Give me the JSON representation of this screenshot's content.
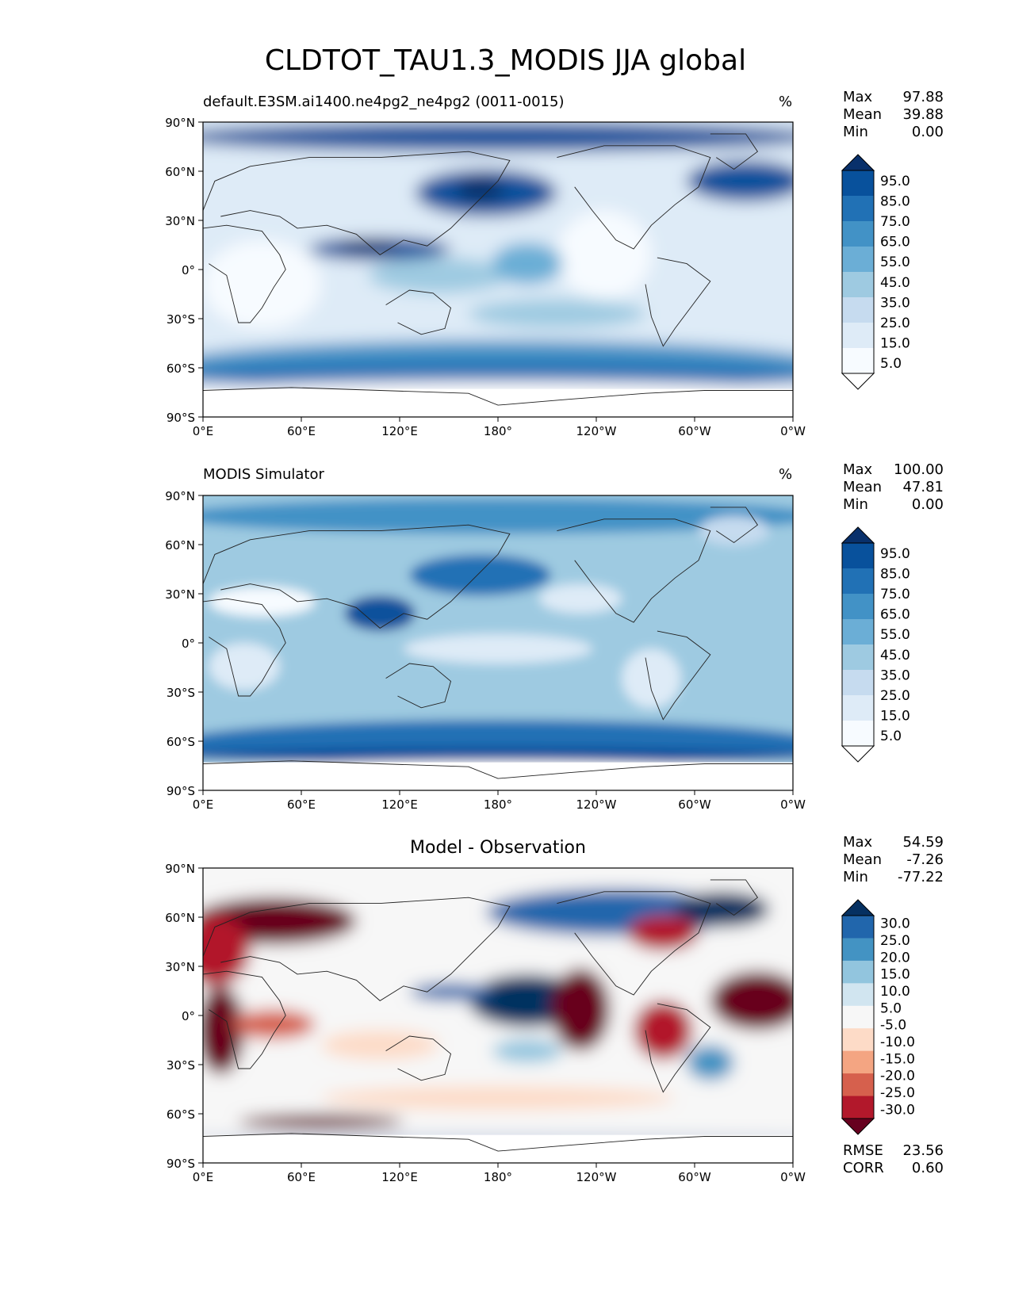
{
  "figure": {
    "title": "CLDTOT_TAU1.3_MODIS JJA global"
  },
  "axes": {
    "yticks": [
      "90°N",
      "60°N",
      "30°N",
      "0°",
      "30°S",
      "60°S",
      "90°S"
    ],
    "xticks": [
      "0°E",
      "60°E",
      "120°E",
      "180°",
      "120°W",
      "60°W",
      "0°W"
    ]
  },
  "panels": [
    {
      "title_left": "default.E3SM.ai1400.ne4pg2_ne4pg2 (0011-0015)",
      "units": "%",
      "stats": {
        "max_label": "Max",
        "max": "97.88",
        "mean_label": "Mean",
        "mean": "39.88",
        "min_label": "Min",
        "min": "0.00"
      },
      "colorbar": {
        "labels": [
          "95.0",
          "85.0",
          "75.0",
          "65.0",
          "55.0",
          "45.0",
          "35.0",
          "25.0",
          "15.0",
          "5.0"
        ],
        "colors": [
          "#08306b",
          "#08519c",
          "#2171b5",
          "#4292c6",
          "#6baed6",
          "#9ecae1",
          "#c6dbef",
          "#deebf7",
          "#f7fbff",
          "#ffffff"
        ]
      }
    },
    {
      "title_left": "MODIS Simulator",
      "units": "%",
      "stats": {
        "max_label": "Max",
        "max": "100.00",
        "mean_label": "Mean",
        "mean": "47.81",
        "min_label": "Min",
        "min": "0.00"
      },
      "colorbar": {
        "labels": [
          "95.0",
          "85.0",
          "75.0",
          "65.0",
          "55.0",
          "45.0",
          "35.0",
          "25.0",
          "15.0",
          "5.0"
        ],
        "colors": [
          "#08306b",
          "#08519c",
          "#2171b5",
          "#4292c6",
          "#6baed6",
          "#9ecae1",
          "#c6dbef",
          "#deebf7",
          "#f7fbff",
          "#ffffff"
        ]
      }
    },
    {
      "title_center": "Model - Observation",
      "stats": {
        "max_label": "Max",
        "max": "54.59",
        "mean_label": "Mean",
        "mean": "-7.26",
        "min_label": "Min",
        "min": "-77.22"
      },
      "colorbar": {
        "labels": [
          "30.0",
          "25.0",
          "20.0",
          "15.0",
          "10.0",
          "5.0",
          "-5.0",
          "-10.0",
          "-15.0",
          "-20.0",
          "-25.0",
          "-30.0"
        ],
        "colors": [
          "#053061",
          "#2166ac",
          "#4393c3",
          "#92c5de",
          "#d1e5f0",
          "#f7f7f7",
          "#fddbc7",
          "#f4a582",
          "#d6604d",
          "#b2182b",
          "#67001f"
        ]
      },
      "metrics": {
        "rmse_label": "RMSE",
        "rmse": "23.56",
        "corr_label": "CORR",
        "corr": "0.60"
      }
    }
  ]
}
